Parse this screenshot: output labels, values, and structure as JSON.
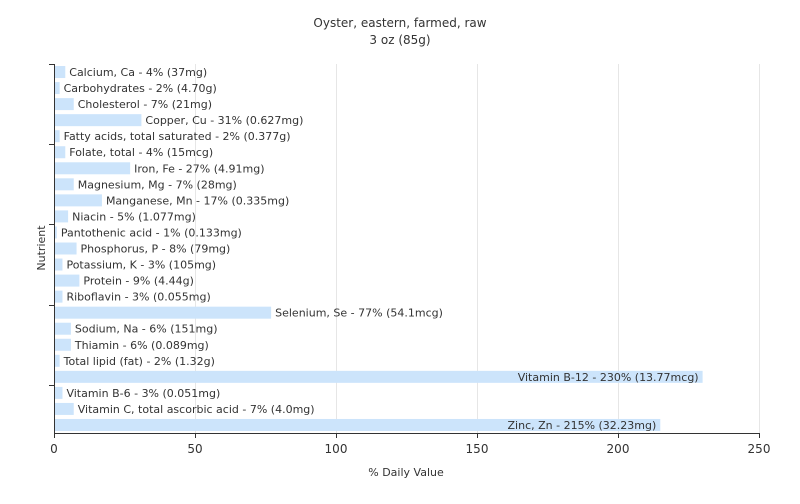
{
  "chart_data": {
    "type": "bar",
    "orientation": "horizontal",
    "title": "Oyster, eastern, farmed, raw",
    "subtitle": "3 oz (85g)",
    "xlabel": "% Daily Value",
    "ylabel": "Nutrient",
    "xlim": [
      0,
      250
    ],
    "xticks": [
      0,
      50,
      100,
      150,
      200,
      250
    ],
    "grid": true,
    "bar_color": "#cce4fb",
    "categories": [
      "Calcium, Ca",
      "Carbohydrates",
      "Cholesterol",
      "Copper, Cu",
      "Fatty acids, total saturated",
      "Folate, total",
      "Iron, Fe",
      "Magnesium, Mg",
      "Manganese, Mn",
      "Niacin",
      "Pantothenic acid",
      "Phosphorus, P",
      "Potassium, K",
      "Protein",
      "Riboflavin",
      "Selenium, Se",
      "Sodium, Na",
      "Thiamin",
      "Total lipid (fat)",
      "Vitamin B-12",
      "Vitamin B-6",
      "Vitamin C, total ascorbic acid",
      "Zinc, Zn"
    ],
    "values": [
      4,
      2,
      7,
      31,
      2,
      4,
      27,
      7,
      17,
      5,
      1,
      8,
      3,
      9,
      3,
      77,
      6,
      6,
      2,
      230,
      3,
      7,
      215
    ],
    "labels": [
      "Calcium, Ca - 4% (37mg)",
      "Carbohydrates - 2% (4.70g)",
      "Cholesterol - 7% (21mg)",
      "Copper, Cu - 31% (0.627mg)",
      "Fatty acids, total saturated - 2% (0.377g)",
      "Folate, total - 4% (15mcg)",
      "Iron, Fe - 27% (4.91mg)",
      "Magnesium, Mg - 7% (28mg)",
      "Manganese, Mn - 17% (0.335mg)",
      "Niacin - 5% (1.077mg)",
      "Pantothenic acid - 1% (0.133mg)",
      "Phosphorus, P - 8% (79mg)",
      "Potassium, K - 3% (105mg)",
      "Protein - 9% (4.44g)",
      "Riboflavin - 3% (0.055mg)",
      "Selenium, Se - 77% (54.1mcg)",
      "Sodium, Na - 6% (151mg)",
      "Thiamin - 6% (0.089mg)",
      "Total lipid (fat) - 2% (1.32g)",
      "Vitamin B-12 - 230% (13.77mcg)",
      "Vitamin B-6 - 3% (0.051mg)",
      "Vitamin C, total ascorbic acid - 7% (4.0mg)",
      "Zinc, Zn - 215% (32.23mg)"
    ]
  }
}
